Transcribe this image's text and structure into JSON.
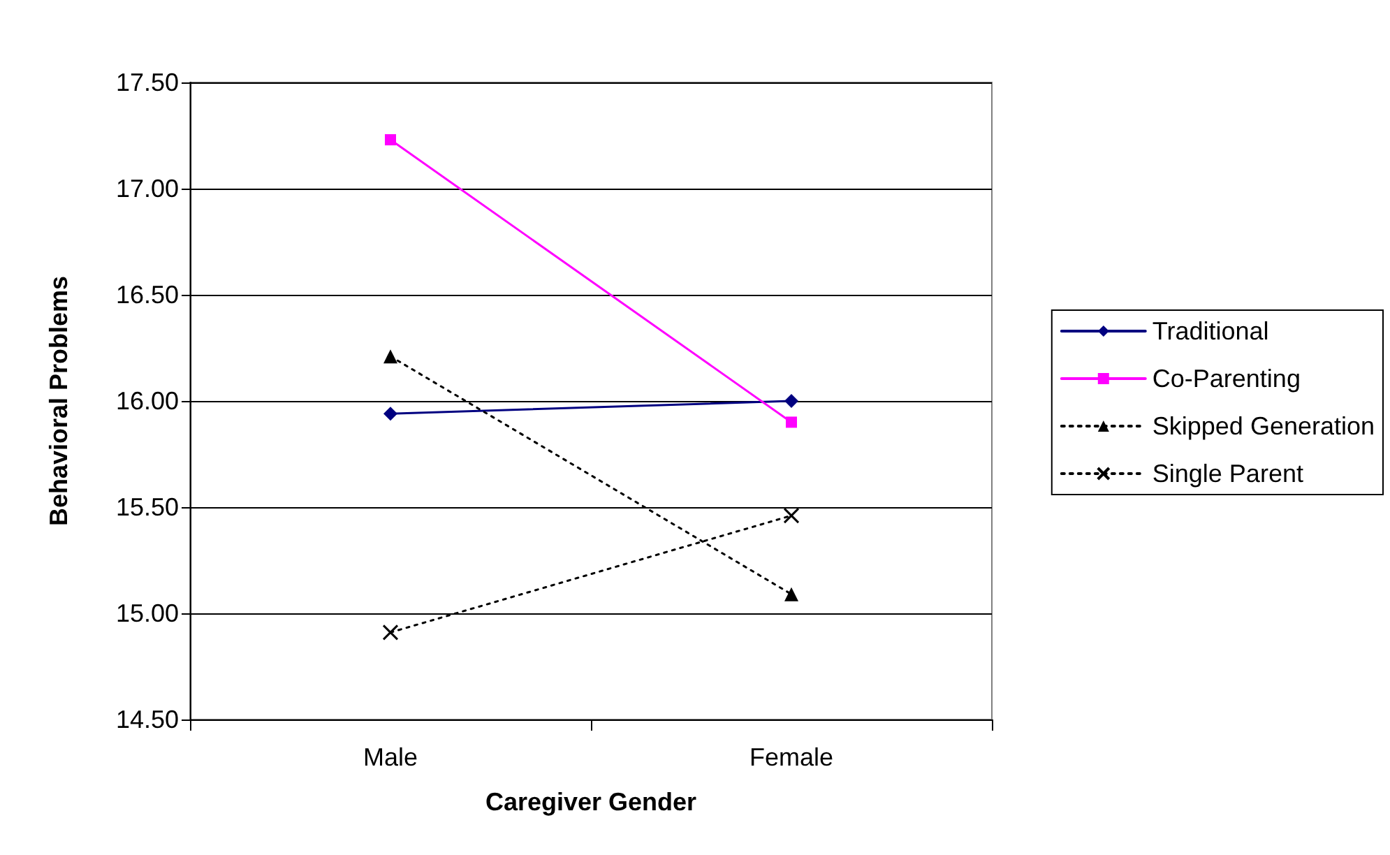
{
  "chart_data": {
    "type": "line",
    "xlabel": "Caregiver Gender",
    "ylabel": "Behavioral Problems",
    "categories": [
      "Male",
      "Female"
    ],
    "series": [
      {
        "name": "Traditional",
        "color": "#000080",
        "values": [
          15.94,
          16.0
        ],
        "marker": "diamond",
        "line_style": "solid"
      },
      {
        "name": "Co-Parenting",
        "color": "#ff00ff",
        "values": [
          17.23,
          15.9
        ],
        "marker": "square",
        "line_style": "solid"
      },
      {
        "name": "Skipped Generation",
        "color": "#000000",
        "values": [
          16.21,
          15.09
        ],
        "marker": "triangle",
        "line_style": "dotted"
      },
      {
        "name": "Single Parent",
        "color": "#000000",
        "values": [
          14.91,
          15.46
        ],
        "marker": "cross",
        "line_style": "dotted"
      }
    ],
    "ylim": [
      14.5,
      17.5
    ],
    "yticks": [
      {
        "value": 14.5,
        "label": "14.50"
      },
      {
        "value": 15,
        "label": "15.00"
      },
      {
        "value": 15.5,
        "label": "15.50"
      },
      {
        "value": 16,
        "label": "16.00"
      },
      {
        "value": 16.5,
        "label": "16.50"
      },
      {
        "value": 17,
        "label": "17.00"
      },
      {
        "value": 17.5,
        "label": "17.50"
      }
    ],
    "grid": "y",
    "legend": "right"
  }
}
